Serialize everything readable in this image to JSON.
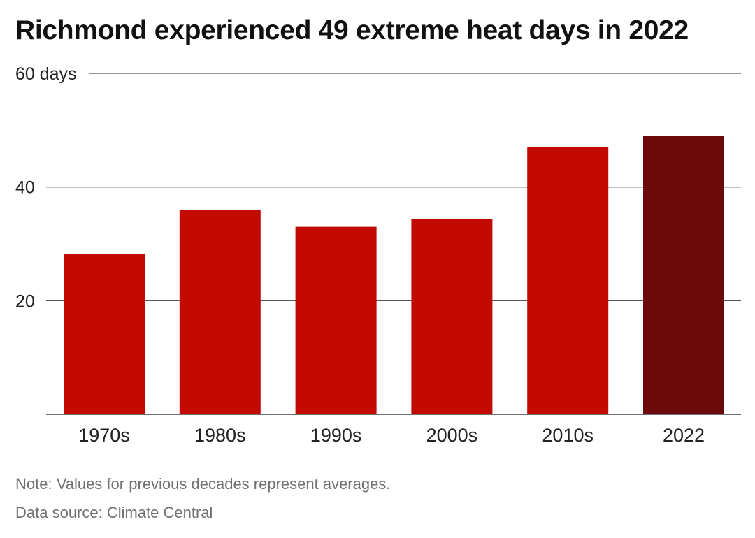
{
  "title": "Richmond experienced 49 extreme heat days in 2022",
  "notes": {
    "note": "Note: Values for previous decades represent averages.",
    "source": "Data source: Climate Central"
  },
  "chart_data": {
    "type": "bar",
    "categories": [
      "1970s",
      "1980s",
      "1990s",
      "2000s",
      "2010s",
      "2022"
    ],
    "values": [
      28.2,
      36.0,
      33.0,
      34.4,
      47.0,
      49.0
    ],
    "ylim": [
      0,
      60
    ],
    "yticks": [
      {
        "value": 20,
        "label": "20"
      },
      {
        "value": 40,
        "label": "40"
      },
      {
        "value": 60,
        "label": "60 days"
      }
    ],
    "colors": {
      "bar": "#c20a03",
      "highlight": "#6a0a0a",
      "gridline": "#555555",
      "axis": "#444444",
      "tick_text": "#222222"
    },
    "highlight_category": "2022",
    "grid": true
  }
}
